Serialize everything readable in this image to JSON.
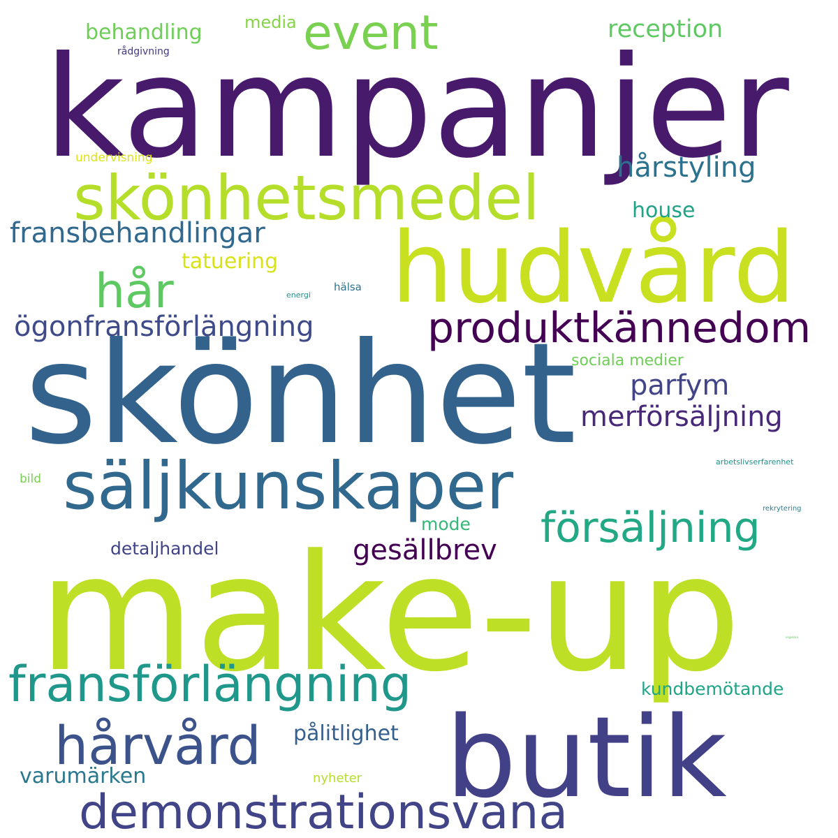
{
  "words": [
    {
      "text": "kampanjer",
      "color": "#481a6c",
      "weight": 1
    },
    {
      "text": "skönhet",
      "color": "#33638d",
      "weight": 2
    },
    {
      "text": "make-up",
      "color": "#bddf26",
      "weight": 3
    },
    {
      "text": "hudvård",
      "color": "#c8e020",
      "weight": 4
    },
    {
      "text": "butik",
      "color": "#424086",
      "weight": 5
    },
    {
      "text": "skönhetsmedel",
      "color": "#b5de2b",
      "weight": 6
    },
    {
      "text": "säljkunskaper",
      "color": "#31688e",
      "weight": 7
    },
    {
      "text": "demonstrationsvana",
      "color": "#414487",
      "weight": 8
    },
    {
      "text": "fransförlängning",
      "color": "#1f988b",
      "weight": 9
    },
    {
      "text": "produktkännedom",
      "color": "#440154",
      "weight": 10
    },
    {
      "text": "event",
      "color": "#7ad151",
      "weight": 11
    },
    {
      "text": "hårvård",
      "color": "#3b528b",
      "weight": 12
    },
    {
      "text": "försäljning",
      "color": "#22a884",
      "weight": 13
    },
    {
      "text": "hår",
      "color": "#5ec962",
      "weight": 14
    },
    {
      "text": "ögonfransförlängning",
      "color": "#3e4a89",
      "weight": 15
    },
    {
      "text": "fransbehandlingar",
      "color": "#31688e",
      "weight": 16
    },
    {
      "text": "hårstyling",
      "color": "#2c728e",
      "weight": 17
    },
    {
      "text": "gesällbrev",
      "color": "#440154",
      "weight": 18
    },
    {
      "text": "merförsäljning",
      "color": "#482878",
      "weight": 19
    },
    {
      "text": "parfym",
      "color": "#414487",
      "weight": 20
    },
    {
      "text": "reception",
      "color": "#5ec962",
      "weight": 21
    },
    {
      "text": "behandling",
      "color": "#6ece58",
      "weight": 22
    },
    {
      "text": "tatuering",
      "color": "#d8e219",
      "weight": 23
    },
    {
      "text": "pålitlighet",
      "color": "#355f8d",
      "weight": 24
    },
    {
      "text": "house",
      "color": "#20a386",
      "weight": 25
    },
    {
      "text": "varumärken",
      "color": "#2a788e",
      "weight": 26
    },
    {
      "text": "detaljhandel",
      "color": "#404387",
      "weight": 27
    },
    {
      "text": "mode",
      "color": "#35b779",
      "weight": 28
    },
    {
      "text": "kundbemötande",
      "color": "#20a486",
      "weight": 29
    },
    {
      "text": "media",
      "color": "#86d549",
      "weight": 30
    },
    {
      "text": "sociala medier",
      "color": "#6ece58",
      "weight": 31
    },
    {
      "text": "nyheter",
      "color": "#b5de2b",
      "weight": 32
    },
    {
      "text": "undervisning",
      "color": "#dde318",
      "weight": 33
    },
    {
      "text": "bild",
      "color": "#7ad151",
      "weight": 34
    },
    {
      "text": "hälsa",
      "color": "#2c728e",
      "weight": 35
    },
    {
      "text": "rådgivning",
      "color": "#443983",
      "weight": 36
    },
    {
      "text": "energi",
      "color": "#21918c",
      "weight": 37
    },
    {
      "text": "arbetslivserfarenhet",
      "color": "#21918c",
      "weight": 38
    },
    {
      "text": "rekrytering",
      "color": "#287d8e",
      "weight": 39
    },
    {
      "text": "engelska",
      "color": "#5ec962",
      "weight": 40
    }
  ]
}
